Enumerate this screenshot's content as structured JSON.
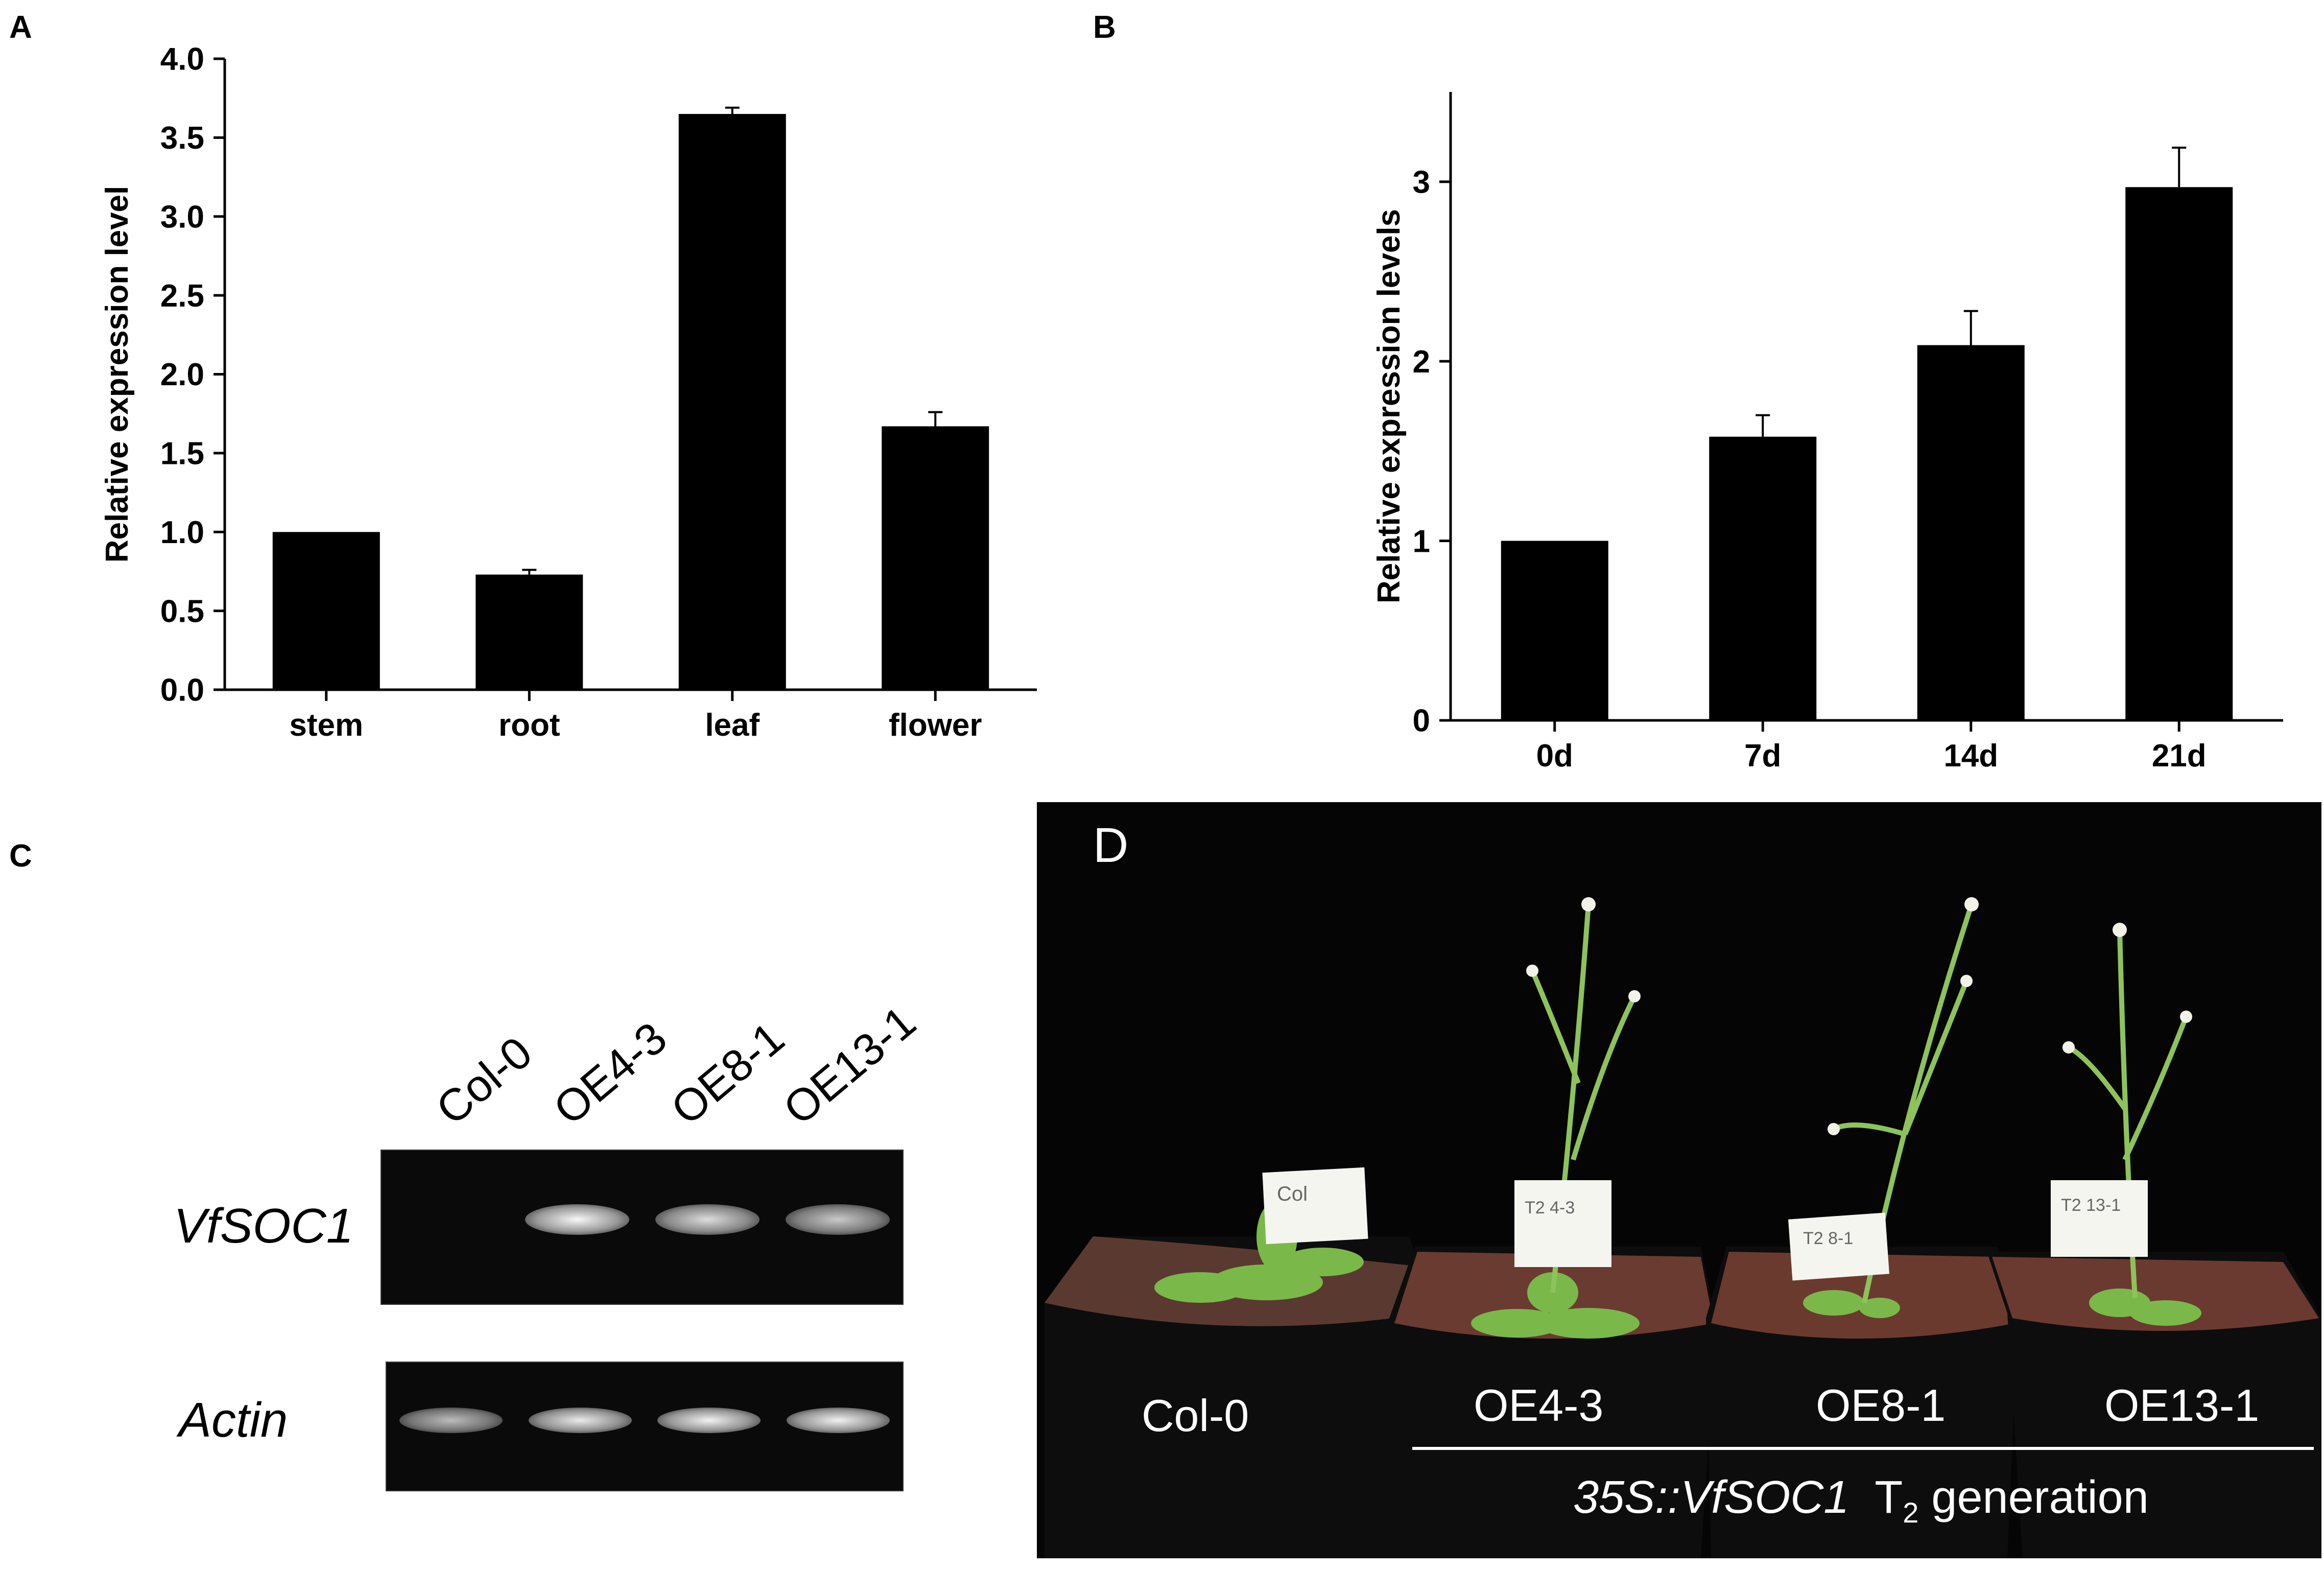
{
  "panels": {
    "A": "A",
    "B": "B",
    "C": "C",
    "D": "D"
  },
  "chart_data": [
    {
      "type": "bar",
      "title": "",
      "xlabel": "",
      "ylabel": "Relative expression level",
      "categories": [
        "stem",
        "root",
        "leaf",
        "flower"
      ],
      "values": [
        1.0,
        0.73,
        3.65,
        1.67
      ],
      "errors": [
        0.0,
        0.03,
        0.04,
        0.09
      ],
      "ylim": [
        0,
        4.0
      ],
      "yticks": [
        "0.0",
        "0.5",
        "1.0",
        "1.5",
        "2.0",
        "2.5",
        "3.0",
        "3.5",
        "4.0"
      ],
      "bar_color": "#000000"
    },
    {
      "type": "bar",
      "title": "",
      "xlabel": "",
      "ylabel": "Relative expression levels",
      "categories": [
        "0d",
        "7d",
        "14d",
        "21d"
      ],
      "values": [
        1.0,
        1.58,
        2.09,
        2.97
      ],
      "errors": [
        0.0,
        0.12,
        0.19,
        0.22
      ],
      "ylim": [
        0,
        3.5
      ],
      "yticks": [
        "0",
        "1",
        "2",
        "3"
      ],
      "bar_color": "#000000"
    }
  ],
  "gel": {
    "lanes": [
      "Col-0",
      "OE4-3",
      "OE8-1",
      "OE13-1"
    ],
    "rows": [
      {
        "label": "VfSOC1",
        "intensity": [
          0.0,
          0.95,
          0.75,
          0.6
        ]
      },
      {
        "label": "Actin",
        "intensity": [
          0.5,
          0.85,
          0.9,
          0.9
        ]
      }
    ]
  },
  "photo": {
    "pot_labels": [
      "Col-0",
      "OE4-3",
      "OE8-1",
      "OE13-1"
    ],
    "caption_italic": "35S::VfSOC1",
    "caption_t": "T",
    "caption_sub": "2",
    "caption_rest": " generation",
    "tags": [
      "Col",
      "T2 4-3",
      "T2 8-1",
      "T2 13-1"
    ]
  }
}
